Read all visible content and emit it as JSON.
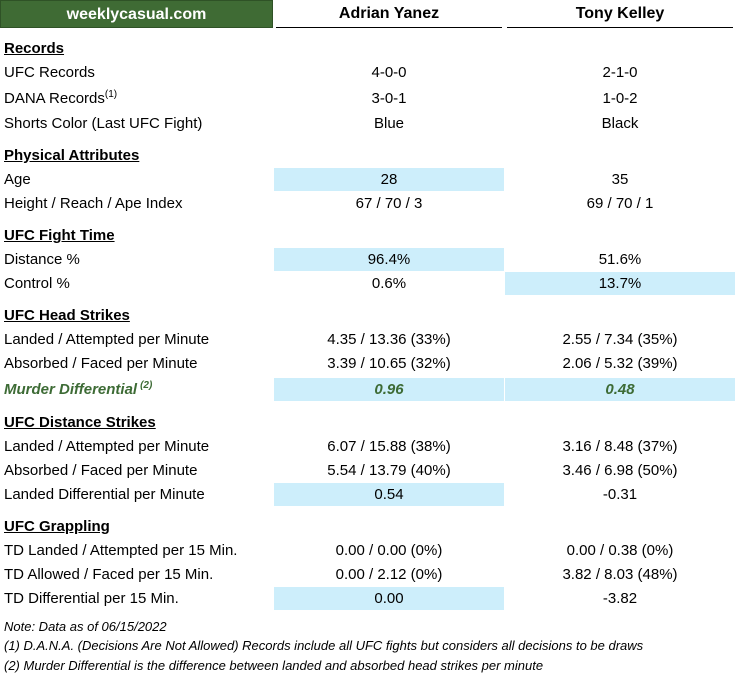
{
  "brand": "weeklycasual.com",
  "fighters": {
    "a": "Adrian Yanez",
    "b": "Tony Kelley"
  },
  "sections": {
    "records": "Records",
    "physical": "Physical Attributes",
    "fight_time": "UFC Fight Time",
    "head": "UFC Head Strikes",
    "distance": "UFC Distance Strikes",
    "grappling": "UFC Grappling"
  },
  "rows": {
    "ufc_records": {
      "label": "UFC Records",
      "a": "4-0-0",
      "b": "2-1-0"
    },
    "dana_records": {
      "label": "DANA Records",
      "sup": "(1)",
      "a": "3-0-1",
      "b": "1-0-2"
    },
    "shorts": {
      "label": "Shorts Color (Last UFC Fight)",
      "a": "Blue",
      "b": "Black"
    },
    "age": {
      "label": "Age",
      "a": "28",
      "b": "35"
    },
    "height": {
      "label": "Height / Reach / Ape Index",
      "a": "67 / 70 / 3",
      "b": "69 / 70 / 1"
    },
    "distance_pct": {
      "label": "Distance %",
      "a": "96.4%",
      "b": "51.6%"
    },
    "control_pct": {
      "label": "Control %",
      "a": "0.6%",
      "b": "13.7%"
    },
    "head_landed": {
      "label": "Landed / Attempted per Minute",
      "a": "4.35 / 13.36 (33%)",
      "b": "2.55 / 7.34 (35%)"
    },
    "head_absorbed": {
      "label": "Absorbed / Faced per Minute",
      "a": "3.39 / 10.65 (32%)",
      "b": "2.06 / 5.32 (39%)"
    },
    "murder": {
      "label": "Murder Differential",
      "sup": "(2)",
      "a": "0.96",
      "b": "0.48"
    },
    "dist_landed": {
      "label": "Landed / Attempted per Minute",
      "a": "6.07 / 15.88 (38%)",
      "b": "3.16 / 8.48 (37%)"
    },
    "dist_absorbed": {
      "label": "Absorbed / Faced per Minute",
      "a": "5.54 / 13.79 (40%)",
      "b": "3.46 / 6.98 (50%)"
    },
    "dist_diff": {
      "label": "Landed Differential per Minute",
      "a": "0.54",
      "b": "-0.31"
    },
    "td_landed": {
      "label": "TD Landed / Attempted per 15 Min.",
      "a": "0.00 / 0.00 (0%)",
      "b": "0.00 / 0.38 (0%)"
    },
    "td_allowed": {
      "label": "TD Allowed / Faced per 15 Min.",
      "a": "0.00 / 2.12 (0%)",
      "b": "3.82 / 8.03 (48%)"
    },
    "td_diff": {
      "label": "TD Differential per 15 Min.",
      "a": "0.00",
      "b": "-3.82"
    }
  },
  "notes": {
    "date": "Note: Data as of 06/15/2022",
    "n1": "(1) D.A.N.A. (Decisions Are Not Allowed) Records include all UFC fights but considers all decisions to be draws",
    "n2": "(2) Murder Differential is the difference between landed and absorbed head strikes per minute"
  },
  "colors": {
    "brand_green": "#3f6b34",
    "highlight": "#cdeefb",
    "murder_text": "#3d6b35"
  }
}
